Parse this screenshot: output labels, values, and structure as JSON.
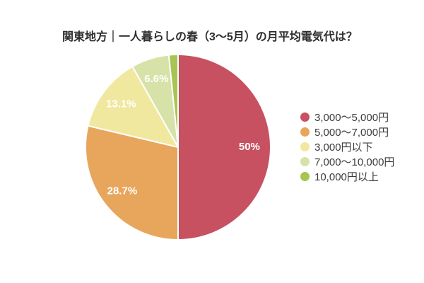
{
  "title": "関東地方｜一人暮らしの春（3〜5月）の月平均電気代は？",
  "chart_data": {
    "type": "pie",
    "title": "関東地方｜一人暮らしの春（3〜5月）の月平均電気代は？",
    "categories": [
      "3,000〜5,000円",
      "5,000〜7,000円",
      "3,000円以下",
      "7,000〜10,000円",
      "10,000円以上"
    ],
    "values": [
      50,
      28.7,
      13.1,
      6.6,
      1.6
    ],
    "value_labels": [
      "50%",
      "28.7%",
      "13.1%",
      "6.6%",
      ""
    ],
    "colors": [
      "#C75160",
      "#E8A65D",
      "#F0E89F",
      "#D7E2A8",
      "#A6C553"
    ],
    "start_angle_deg": -90,
    "direction": "clockwise",
    "legend_position": "right",
    "slice_label_color": "#FFFFFF",
    "slice_stroke_color": "#FFFFFF",
    "background_color": "#FFFFFF",
    "title_color": "#2D2D2D",
    "legend_text_color": "#3B3B3B"
  }
}
